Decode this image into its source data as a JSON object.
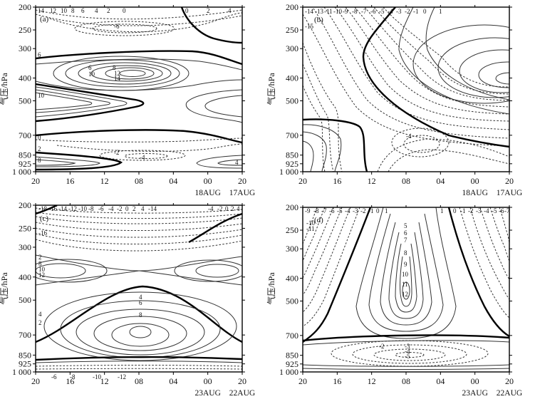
{
  "figure": {
    "panels": [
      {
        "label": "(a)",
        "ylabel": "气压/hPa",
        "yticks": [
          "200",
          "250",
          "300",
          "400",
          "500",
          "700",
          "850",
          "925",
          "1 000"
        ],
        "xticks": [
          "20",
          "16",
          "12",
          "08",
          "04",
          "00",
          "20"
        ],
        "dates": [
          "18AUG",
          "17AUG"
        ],
        "contour_labels": [
          "14",
          "12",
          "10",
          "8",
          "6",
          "4",
          "2",
          "0",
          "0",
          "2",
          "4",
          "-6",
          "6",
          "8",
          "10",
          "12",
          "14",
          "6",
          "10",
          "-2",
          "-4",
          "8",
          "4",
          "2",
          "0"
        ]
      },
      {
        "label": "(b)",
        "ylabel": "气压/hPa",
        "yticks": [
          "200",
          "250",
          "300",
          "400",
          "500",
          "700",
          "850",
          "925",
          "1 000"
        ],
        "xticks": [
          "20",
          "16",
          "12",
          "08",
          "04",
          "00",
          "20"
        ],
        "dates": [
          "18AUG",
          "17AUG"
        ],
        "contour_labels": [
          "-14",
          "-13",
          "-11",
          "-10",
          "-9",
          "-8",
          "-7",
          "-6",
          "-5",
          "-4",
          "-3",
          "-2",
          "-1",
          "0",
          "1",
          "-4",
          "-15"
        ]
      },
      {
        "label": "(c)",
        "ylabel": "气压/hPa",
        "yticks": [
          "200",
          "250",
          "300",
          "400",
          "500",
          "700",
          "850",
          "925",
          "1 000"
        ],
        "xticks": [
          "20",
          "16",
          "12",
          "08",
          "04",
          "00",
          "20"
        ],
        "dates": [
          "23AUG",
          "22AUG"
        ],
        "contour_labels": [
          "-18",
          "-16",
          "-14",
          "-12",
          "-10",
          "-8",
          "-6",
          "-4",
          "-2",
          "0",
          "2",
          "4",
          "-14",
          "-12",
          "-10",
          "-4",
          "-2",
          "0",
          "2",
          "4",
          "-18",
          "-16",
          "2",
          "8",
          "10",
          "12",
          "4",
          "6",
          "8",
          "4",
          "2",
          "-6",
          "-8",
          "-10",
          "-12"
        ]
      },
      {
        "label": "(d)",
        "ylabel": "气压/hPa",
        "yticks": [
          "200",
          "250",
          "300",
          "400",
          "500",
          "700",
          "850",
          "925",
          "1 000"
        ],
        "xticks": [
          "20",
          "16",
          "12",
          "08",
          "04",
          "00",
          "20"
        ],
        "dates": [
          "23AUG",
          "22AUG"
        ],
        "contour_labels": [
          "-9",
          "-8",
          "-7",
          "-6",
          "-5",
          "-4",
          "-3",
          "-2",
          "-1",
          "0",
          "1",
          "1",
          "0",
          "-1",
          "-2",
          "-3",
          "-4",
          "-5",
          "-6",
          "-7",
          "-8",
          "-9",
          "-10",
          "-11",
          "5",
          "6",
          "7",
          "8",
          "9",
          "10",
          "11",
          "12",
          "-2",
          "-3",
          "-4",
          "-5"
        ]
      }
    ]
  },
  "chart_data": [
    {
      "type": "contour",
      "panel": "(a)",
      "ylabel": "气压/hPa",
      "y_axis": {
        "scale": "log-pressure",
        "ticks": [
          200,
          250,
          300,
          400,
          500,
          700,
          850,
          925,
          1000
        ],
        "range": [
          1000,
          200
        ]
      },
      "x_axis": {
        "ticks": [
          "20",
          "16",
          "12",
          "08",
          "04",
          "00",
          "20"
        ],
        "dates": [
          "18AUG",
          "17AUG"
        ],
        "direction": "time increases right-to-left"
      },
      "levels_labeled": [
        -6,
        -4,
        -2,
        0,
        2,
        4,
        6,
        8,
        10,
        12,
        14
      ],
      "features": [
        {
          "type": "max",
          "center_hour": "08",
          "center_p": 400,
          "value": 14
        },
        {
          "type": "min",
          "center_hour": "12",
          "center_p": 250,
          "value": -6
        },
        {
          "type": "min",
          "center_hour": "08",
          "center_p": 850,
          "value": -4
        },
        {
          "type": "max",
          "center_hour": "20",
          "center_p": 925,
          "value": 8
        }
      ],
      "zero_contour": "bold"
    },
    {
      "type": "contour",
      "panel": "(b)",
      "ylabel": "气压/hPa",
      "y_axis": {
        "scale": "log-pressure",
        "ticks": [
          200,
          250,
          300,
          400,
          500,
          700,
          850,
          925,
          1000
        ],
        "range": [
          1000,
          200
        ]
      },
      "x_axis": {
        "ticks": [
          "20",
          "16",
          "12",
          "08",
          "04",
          "00",
          "20"
        ],
        "dates": [
          "18AUG",
          "17AUG"
        ]
      },
      "levels_labeled": [
        -15,
        -14,
        -13,
        -11,
        -10,
        -9,
        -8,
        -7,
        -6,
        -5,
        -4,
        -3,
        -2,
        -1,
        0,
        1
      ],
      "features": [
        {
          "type": "min",
          "center_hour": "20",
          "center_p": 200,
          "value": -15
        },
        {
          "type": "min",
          "center_hour": "08",
          "center_p": 700,
          "value": -4
        },
        {
          "type": "max",
          "center_hour": "20",
          "center_p": 400,
          "value": 1
        }
      ],
      "zero_contour": "bold"
    },
    {
      "type": "contour",
      "panel": "(c)",
      "ylabel": "气压/hPa",
      "y_axis": {
        "scale": "log-pressure",
        "ticks": [
          200,
          250,
          300,
          400,
          500,
          700,
          850,
          925,
          1000
        ],
        "range": [
          1000,
          200
        ]
      },
      "x_axis": {
        "ticks": [
          "20",
          "16",
          "12",
          "08",
          "04",
          "00",
          "20"
        ],
        "dates": [
          "23AUG",
          "22AUG"
        ]
      },
      "levels_labeled": [
        -18,
        -16,
        -14,
        -12,
        -10,
        -8,
        -6,
        -4,
        -2,
        0,
        2,
        4,
        6,
        8,
        10,
        12
      ],
      "features": [
        {
          "type": "max",
          "center_hour": "08",
          "center_p": 600,
          "value": 8
        },
        {
          "type": "min",
          "center_hour": "20",
          "center_p": 200,
          "value": -18
        },
        {
          "type": "min",
          "center_hour": "08",
          "center_p": 1000,
          "value": -12
        }
      ],
      "zero_contour": "bold"
    },
    {
      "type": "contour",
      "panel": "(d)",
      "ylabel": "气压/hPa",
      "y_axis": {
        "scale": "log-pressure",
        "ticks": [
          200,
          250,
          300,
          400,
          500,
          700,
          850,
          925,
          1000
        ],
        "range": [
          1000,
          200
        ]
      },
      "x_axis": {
        "ticks": [
          "20",
          "16",
          "12",
          "08",
          "04",
          "00",
          "20"
        ],
        "dates": [
          "23AUG",
          "22AUG"
        ]
      },
      "levels_labeled": [
        -11,
        -10,
        -9,
        -8,
        -7,
        -6,
        -5,
        -4,
        -3,
        -2,
        -1,
        0,
        1,
        5,
        6,
        7,
        8,
        9,
        10,
        11,
        12
      ],
      "features": [
        {
          "type": "max",
          "center_hour": "08",
          "center_p": 450,
          "value": 12
        },
        {
          "type": "min",
          "center_hour": "08",
          "center_p": 900,
          "value": -5
        },
        {
          "type": "min",
          "center_hour": "20",
          "center_p": 250,
          "value": -11
        }
      ],
      "zero_contour": "bold"
    }
  ]
}
